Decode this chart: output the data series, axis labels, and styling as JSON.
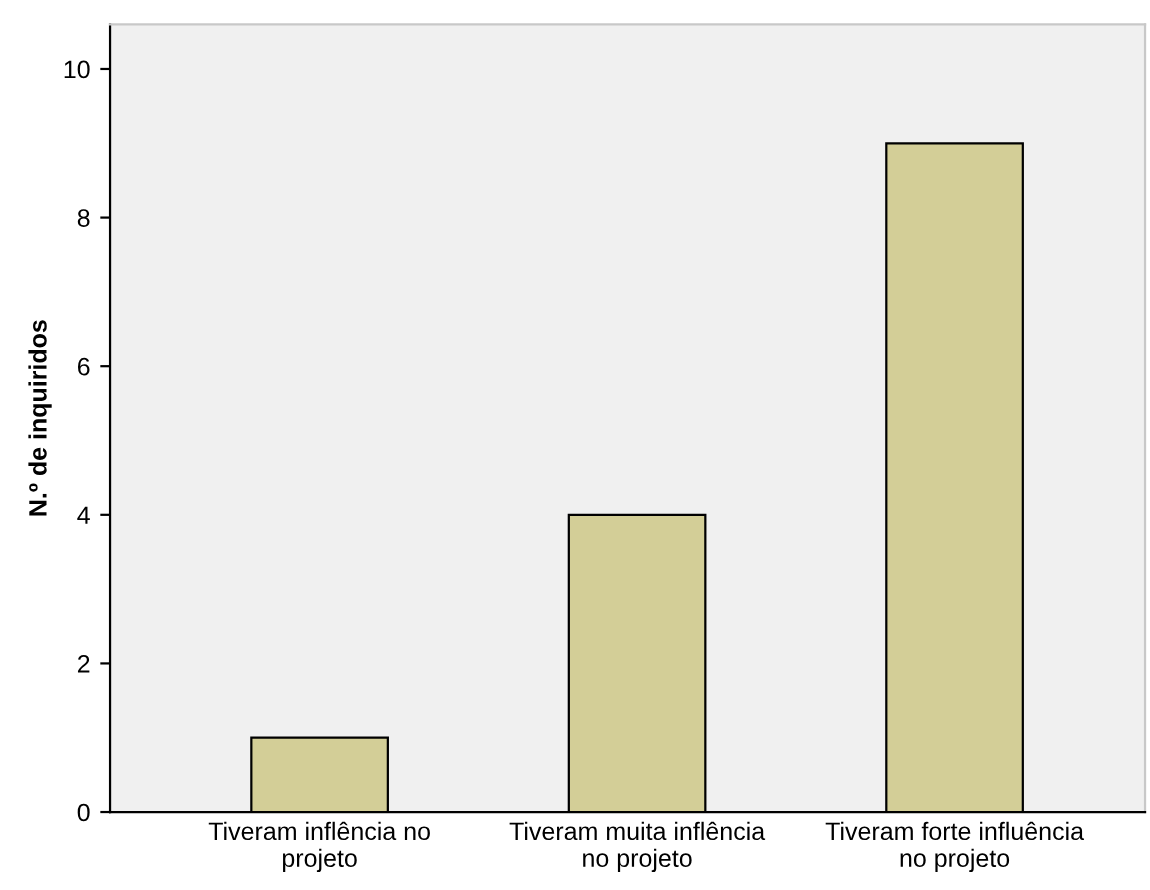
{
  "chart_data": {
    "type": "bar",
    "ylabel": "N.º de inquiridos",
    "categories": [
      "Tiveram inflência no\nprojeto",
      "Tiveram muita inflência\nno projeto",
      "Tiveram forte influência\nno projeto"
    ],
    "values": [
      1,
      4,
      9
    ],
    "color": "#d3ce97",
    "ylim": [
      0,
      10.6
    ],
    "yticks": [
      0,
      2,
      4,
      6,
      8,
      10
    ],
    "grid": false,
    "legend": false
  }
}
